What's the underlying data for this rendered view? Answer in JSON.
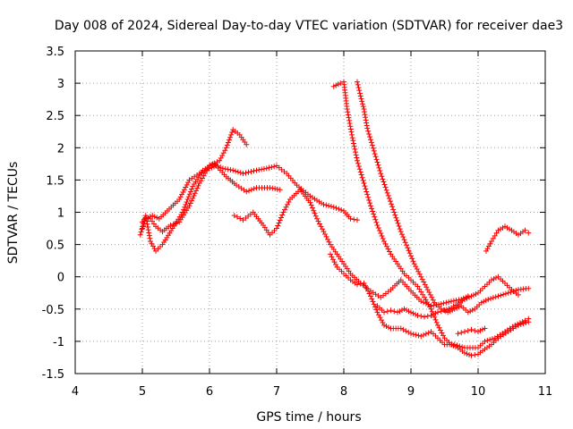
{
  "chart_data": {
    "type": "scatter",
    "title": "Day 008 of 2024, Sidereal Day-to-day VTEC variation (SDTVAR) for receiver dae3",
    "xlabel": "GPS time / hours",
    "ylabel": "SDTVAR / TECUs",
    "xlim": [
      4,
      11
    ],
    "ylim": [
      -1.5,
      3.5
    ],
    "x_ticks": [
      4,
      5,
      6,
      7,
      8,
      9,
      10,
      11
    ],
    "x_tick_labels": [
      "4",
      "5",
      "6",
      "7",
      "8",
      "9",
      "10",
      "11"
    ],
    "y_ticks": [
      -1.5,
      -1,
      -0.5,
      0,
      0.5,
      1,
      1.5,
      2,
      2.5,
      3,
      3.5
    ],
    "y_tick_labels": [
      "-1.5",
      "-1",
      "-0.5",
      "0",
      "0.5",
      "1",
      "1.5",
      "2",
      "2.5",
      "3",
      "3.5"
    ],
    "grid": true,
    "marker": "+",
    "marker_color": "#ff0000",
    "grid_color": "#a0a0a0",
    "series": [
      {
        "name": "track-1",
        "points": [
          [
            4.97,
            0.65
          ],
          [
            5.05,
            0.95
          ],
          [
            5.12,
            0.55
          ],
          [
            5.2,
            0.4
          ],
          [
            5.3,
            0.5
          ],
          [
            5.45,
            0.75
          ],
          [
            5.6,
            1.0
          ],
          [
            5.75,
            1.4
          ],
          [
            5.9,
            1.65
          ],
          [
            6.05,
            1.75
          ],
          [
            6.2,
            1.68
          ],
          [
            6.35,
            1.65
          ],
          [
            6.5,
            1.6
          ],
          [
            6.7,
            1.65
          ],
          [
            6.85,
            1.68
          ],
          [
            7.0,
            1.72
          ],
          [
            7.15,
            1.6
          ],
          [
            7.3,
            1.42
          ],
          [
            7.5,
            1.25
          ],
          [
            7.7,
            1.12
          ],
          [
            7.85,
            1.08
          ],
          [
            8.0,
            1.02
          ],
          [
            8.1,
            0.9
          ],
          [
            8.2,
            0.88
          ]
        ]
      },
      {
        "name": "track-2",
        "points": [
          [
            5.0,
            0.85
          ],
          [
            5.05,
            0.92
          ],
          [
            5.12,
            0.9
          ],
          [
            5.2,
            0.78
          ],
          [
            5.3,
            0.7
          ],
          [
            5.42,
            0.8
          ],
          [
            5.55,
            0.85
          ],
          [
            5.7,
            1.1
          ],
          [
            5.85,
            1.45
          ],
          [
            6.0,
            1.72
          ],
          [
            6.15,
            1.8
          ],
          [
            6.25,
            2.0
          ],
          [
            6.35,
            2.28
          ],
          [
            6.45,
            2.2
          ],
          [
            6.55,
            2.05
          ]
        ]
      },
      {
        "name": "track-3",
        "points": [
          [
            5.0,
            0.75
          ],
          [
            5.05,
            0.9
          ],
          [
            5.15,
            0.95
          ],
          [
            5.25,
            0.9
          ],
          [
            5.4,
            1.05
          ],
          [
            5.55,
            1.2
          ],
          [
            5.7,
            1.5
          ],
          [
            5.85,
            1.6
          ],
          [
            6.0,
            1.68
          ],
          [
            6.1,
            1.72
          ],
          [
            6.25,
            1.55
          ],
          [
            6.4,
            1.42
          ],
          [
            6.55,
            1.32
          ],
          [
            6.7,
            1.38
          ],
          [
            6.9,
            1.38
          ],
          [
            7.05,
            1.35
          ]
        ]
      },
      {
        "name": "track-4",
        "points": [
          [
            6.37,
            0.95
          ],
          [
            6.5,
            0.88
          ],
          [
            6.65,
            1.0
          ],
          [
            6.8,
            0.8
          ],
          [
            6.9,
            0.65
          ],
          [
            7.0,
            0.75
          ],
          [
            7.1,
            1.0
          ],
          [
            7.2,
            1.2
          ],
          [
            7.35,
            1.35
          ],
          [
            7.5,
            1.15
          ],
          [
            7.6,
            0.9
          ],
          [
            7.7,
            0.7
          ],
          [
            7.8,
            0.5
          ],
          [
            7.9,
            0.35
          ],
          [
            8.0,
            0.2
          ],
          [
            8.1,
            0.05
          ],
          [
            8.25,
            -0.1
          ],
          [
            8.4,
            -0.22
          ],
          [
            8.55,
            -0.32
          ],
          [
            8.7,
            -0.2
          ],
          [
            8.85,
            -0.05
          ],
          [
            9.0,
            -0.22
          ],
          [
            9.15,
            -0.38
          ],
          [
            9.3,
            -0.45
          ],
          [
            9.45,
            -0.42
          ],
          [
            9.6,
            -0.38
          ],
          [
            9.75,
            -0.35
          ],
          [
            9.85,
            -0.3
          ]
        ]
      },
      {
        "name": "track-5",
        "points": [
          [
            7.8,
            0.35
          ],
          [
            7.9,
            0.15
          ],
          [
            8.0,
            0.05
          ],
          [
            8.1,
            -0.05
          ],
          [
            8.2,
            -0.12
          ],
          [
            8.3,
            -0.1
          ],
          [
            8.4,
            -0.3
          ],
          [
            8.5,
            -0.55
          ],
          [
            8.6,
            -0.75
          ],
          [
            8.7,
            -0.8
          ],
          [
            8.85,
            -0.8
          ],
          [
            9.0,
            -0.88
          ],
          [
            9.15,
            -0.92
          ],
          [
            9.3,
            -0.85
          ],
          [
            9.4,
            -0.95
          ],
          [
            9.5,
            -1.05
          ],
          [
            9.65,
            -1.05
          ],
          [
            9.8,
            -1.1
          ],
          [
            10.0,
            -1.1
          ],
          [
            10.1,
            -1.0
          ],
          [
            10.25,
            -0.95
          ],
          [
            10.4,
            -0.85
          ],
          [
            10.55,
            -0.75
          ],
          [
            10.7,
            -0.68
          ],
          [
            10.75,
            -0.65
          ]
        ]
      },
      {
        "name": "track-6",
        "points": [
          [
            7.85,
            2.95
          ],
          [
            7.95,
            3.0
          ],
          [
            8.0,
            3.02
          ],
          [
            8.05,
            2.6
          ],
          [
            8.12,
            2.2
          ],
          [
            8.2,
            1.8
          ],
          [
            8.3,
            1.45
          ],
          [
            8.4,
            1.1
          ],
          [
            8.5,
            0.8
          ],
          [
            8.6,
            0.55
          ],
          [
            8.7,
            0.35
          ],
          [
            8.8,
            0.2
          ],
          [
            8.9,
            0.05
          ],
          [
            9.0,
            -0.05
          ],
          [
            9.1,
            -0.15
          ],
          [
            9.2,
            -0.32
          ],
          [
            9.3,
            -0.5
          ],
          [
            9.4,
            -0.75
          ],
          [
            9.5,
            -0.95
          ],
          [
            9.6,
            -1.05
          ],
          [
            9.7,
            -1.1
          ],
          [
            9.8,
            -1.18
          ],
          [
            9.9,
            -1.22
          ],
          [
            10.0,
            -1.2
          ],
          [
            10.1,
            -1.12
          ],
          [
            10.2,
            -1.05
          ],
          [
            10.3,
            -0.95
          ],
          [
            10.45,
            -0.85
          ],
          [
            10.6,
            -0.75
          ],
          [
            10.75,
            -0.7
          ]
        ]
      },
      {
        "name": "track-7",
        "points": [
          [
            8.2,
            3.02
          ],
          [
            8.25,
            2.8
          ],
          [
            8.3,
            2.6
          ],
          [
            8.35,
            2.3
          ],
          [
            8.45,
            1.95
          ],
          [
            8.55,
            1.6
          ],
          [
            8.65,
            1.3
          ],
          [
            8.75,
            1.0
          ],
          [
            8.85,
            0.7
          ],
          [
            8.95,
            0.45
          ],
          [
            9.05,
            0.2
          ],
          [
            9.15,
            0.0
          ],
          [
            9.25,
            -0.2
          ],
          [
            9.35,
            -0.4
          ],
          [
            9.45,
            -0.5
          ],
          [
            9.55,
            -0.55
          ],
          [
            9.65,
            -0.5
          ],
          [
            9.75,
            -0.45
          ],
          [
            9.85,
            -0.55
          ],
          [
            9.95,
            -0.5
          ],
          [
            10.05,
            -0.4
          ],
          [
            10.15,
            -0.35
          ],
          [
            10.3,
            -0.3
          ],
          [
            10.45,
            -0.25
          ],
          [
            10.6,
            -0.2
          ],
          [
            10.75,
            -0.18
          ]
        ]
      },
      {
        "name": "track-8",
        "points": [
          [
            8.5,
            -0.45
          ],
          [
            8.6,
            -0.55
          ],
          [
            8.7,
            -0.52
          ],
          [
            8.8,
            -0.55
          ],
          [
            8.9,
            -0.5
          ],
          [
            9.0,
            -0.55
          ],
          [
            9.1,
            -0.6
          ],
          [
            9.2,
            -0.62
          ],
          [
            9.3,
            -0.6
          ],
          [
            9.4,
            -0.55
          ],
          [
            9.5,
            -0.52
          ],
          [
            9.6,
            -0.48
          ],
          [
            9.7,
            -0.42
          ],
          [
            9.8,
            -0.35
          ],
          [
            9.9,
            -0.3
          ],
          [
            10.0,
            -0.25
          ],
          [
            10.1,
            -0.15
          ],
          [
            10.2,
            -0.05
          ],
          [
            10.3,
            0.0
          ],
          [
            10.4,
            -0.1
          ],
          [
            10.5,
            -0.2
          ],
          [
            10.6,
            -0.28
          ]
        ]
      },
      {
        "name": "track-9",
        "points": [
          [
            10.12,
            0.4
          ],
          [
            10.2,
            0.55
          ],
          [
            10.3,
            0.72
          ],
          [
            10.4,
            0.78
          ],
          [
            10.5,
            0.72
          ],
          [
            10.6,
            0.65
          ],
          [
            10.7,
            0.72
          ],
          [
            10.75,
            0.68
          ]
        ]
      },
      {
        "name": "track-10",
        "points": [
          [
            9.7,
            -0.88
          ],
          [
            9.8,
            -0.85
          ],
          [
            9.9,
            -0.82
          ],
          [
            10.0,
            -0.85
          ],
          [
            10.1,
            -0.8
          ]
        ]
      }
    ]
  }
}
